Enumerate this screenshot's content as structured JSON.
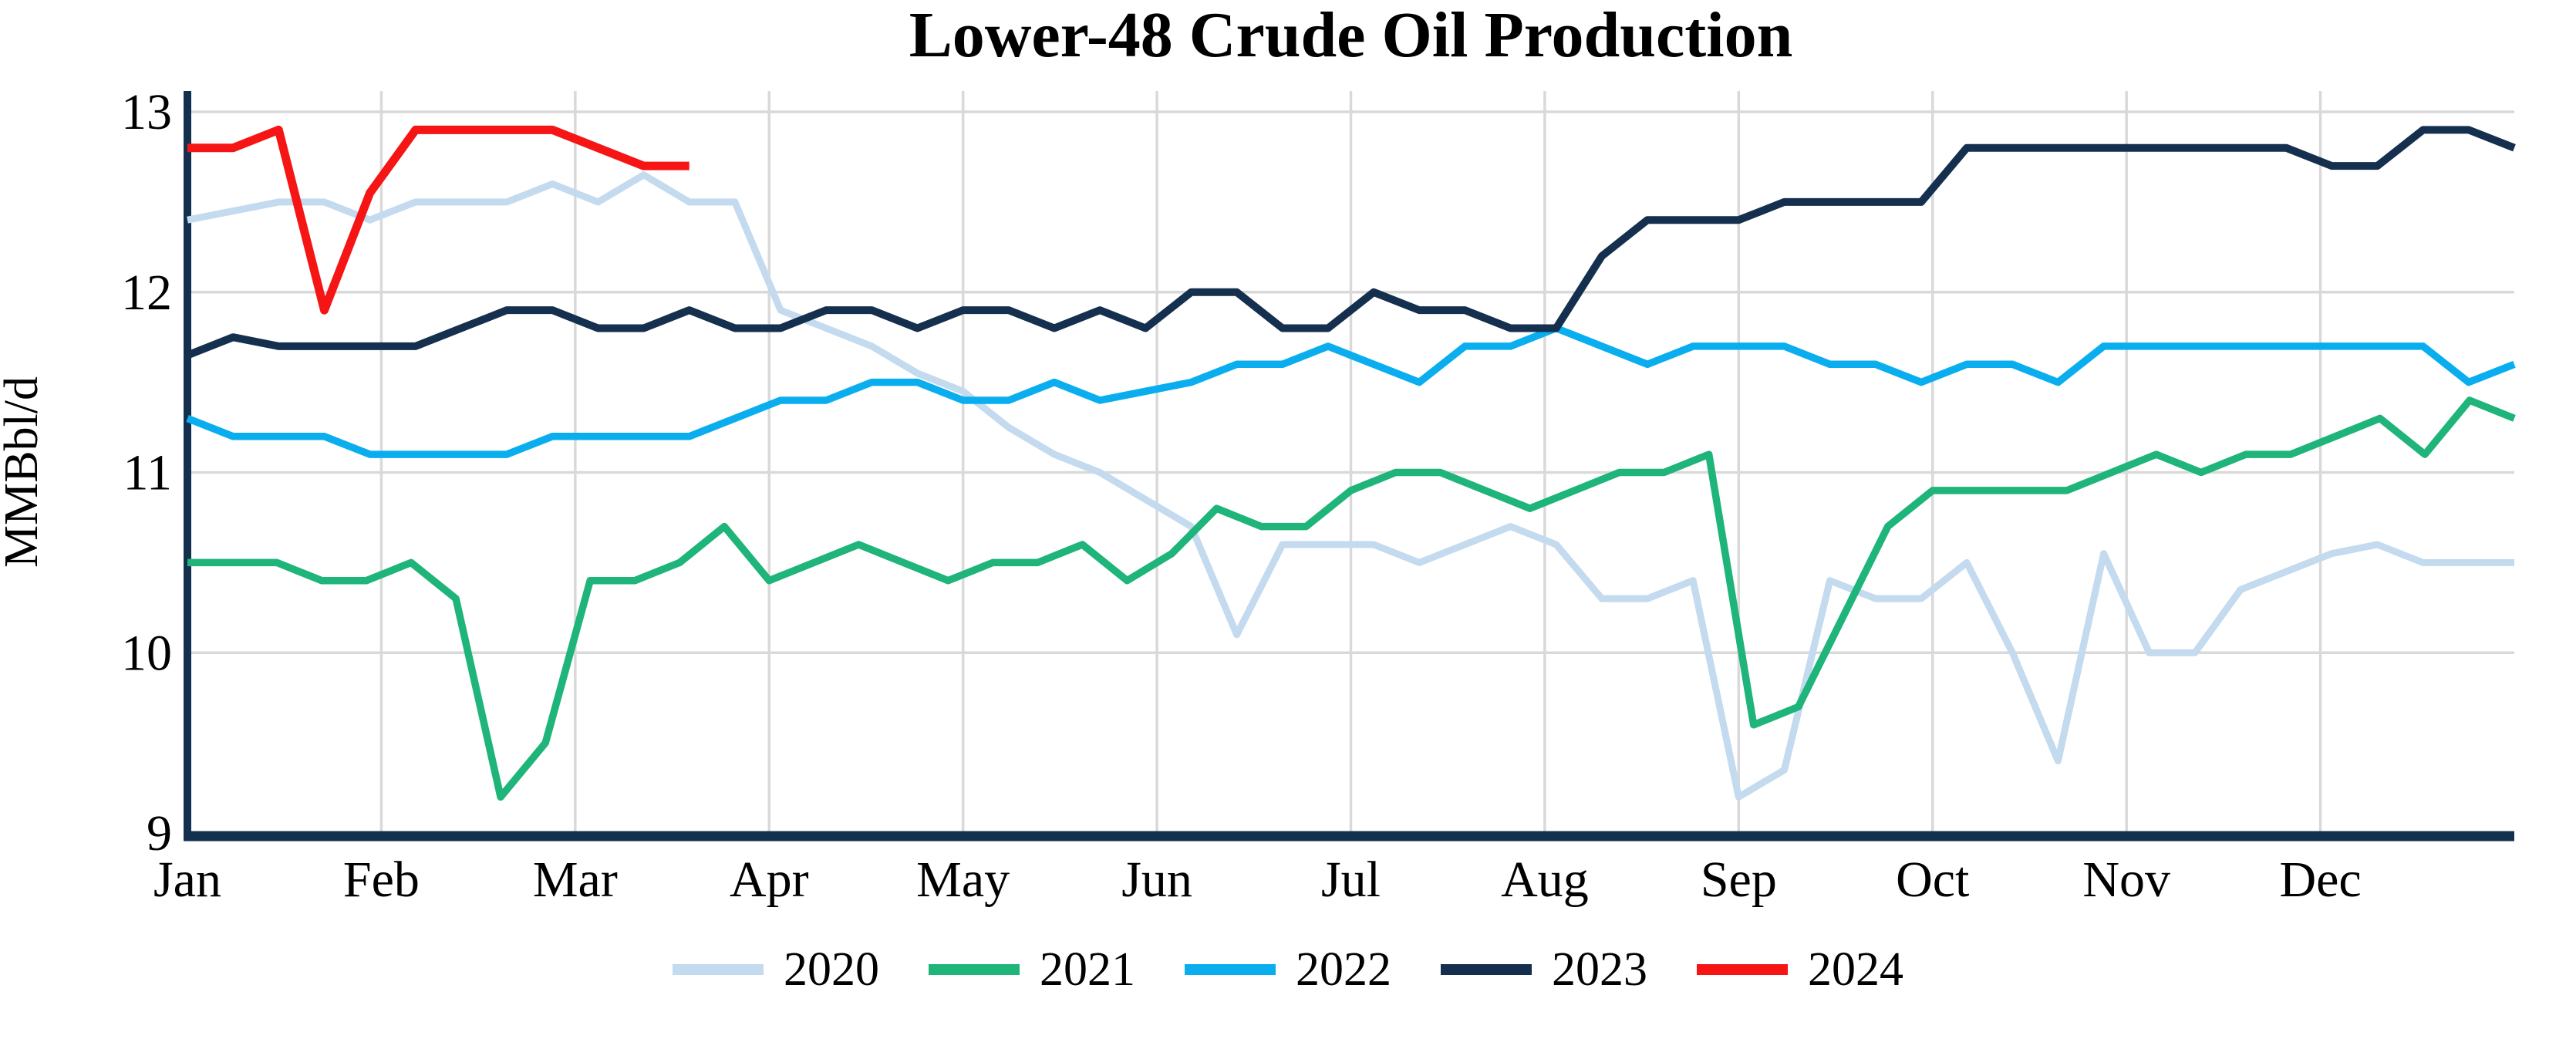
{
  "chart_data": {
    "type": "line",
    "title": "Lower-48 Crude Oil Production",
    "ylabel": "MMBbl/d",
    "xlabel": "",
    "x_tick_labels": [
      "Jan",
      "Feb",
      "Mar",
      "Apr",
      "May",
      "Jun",
      "Jul",
      "Aug",
      "Sep",
      "Oct",
      "Nov",
      "Dec"
    ],
    "y_ticks": [
      9,
      10,
      11,
      12,
      13
    ],
    "ylim": [
      9,
      13
    ],
    "x_unit": "weekly data, one calendar year",
    "grid": "vertical month lines and horizontal unit lines, light gray",
    "legend_position": "bottom-center",
    "frame": "navy left and bottom axis only",
    "axis_color": "#14304F",
    "gridline_color": "#D9D9D9",
    "series": [
      {
        "name": "2020",
        "color": "#C3DAEF",
        "width": 9,
        "values": [
          12.4,
          12.45,
          12.5,
          12.5,
          12.4,
          12.5,
          12.5,
          12.5,
          12.6,
          12.5,
          12.65,
          12.5,
          12.5,
          11.9,
          11.8,
          11.7,
          11.55,
          11.45,
          11.25,
          11.1,
          11.0,
          10.85,
          10.7,
          10.1,
          10.6,
          10.6,
          10.6,
          10.5,
          10.6,
          10.7,
          10.6,
          10.3,
          10.3,
          10.4,
          9.2,
          9.35,
          10.4,
          10.3,
          10.3,
          10.5,
          10.0,
          9.4,
          10.55,
          10.0,
          10.0,
          10.35,
          10.45,
          10.55,
          10.6,
          10.5,
          10.5,
          10.5
        ]
      },
      {
        "name": "2021",
        "color": "#1EB47A",
        "width": 9.5,
        "values": [
          10.5,
          10.5,
          10.5,
          10.4,
          10.4,
          10.5,
          10.3,
          9.2,
          9.5,
          10.4,
          10.4,
          10.5,
          10.7,
          10.4,
          10.5,
          10.6,
          10.5,
          10.4,
          10.5,
          10.5,
          10.6,
          10.4,
          10.55,
          10.8,
          10.7,
          10.7,
          10.9,
          11.0,
          11.0,
          10.9,
          10.8,
          10.9,
          11.0,
          11.0,
          11.1,
          9.6,
          9.7,
          10.2,
          10.7,
          10.9,
          10.9,
          10.9,
          10.9,
          11.0,
          11.1,
          11.0,
          11.1,
          11.1,
          11.2,
          11.3,
          11.1,
          11.4,
          11.3
        ]
      },
      {
        "name": "2022",
        "color": "#0AAEEF",
        "width": 9.5,
        "values": [
          11.3,
          11.2,
          11.2,
          11.2,
          11.1,
          11.1,
          11.1,
          11.1,
          11.2,
          11.2,
          11.2,
          11.2,
          11.3,
          11.4,
          11.4,
          11.5,
          11.5,
          11.4,
          11.4,
          11.5,
          11.4,
          11.45,
          11.5,
          11.6,
          11.6,
          11.7,
          11.6,
          11.5,
          11.7,
          11.7,
          11.8,
          11.7,
          11.6,
          11.7,
          11.7,
          11.7,
          11.6,
          11.6,
          11.5,
          11.6,
          11.6,
          11.5,
          11.7,
          11.7,
          11.7,
          11.7,
          11.7,
          11.7,
          11.7,
          11.7,
          11.5,
          11.6
        ]
      },
      {
        "name": "2023",
        "color": "#152F4E",
        "width": 10,
        "values": [
          11.65,
          11.75,
          11.7,
          11.7,
          11.7,
          11.7,
          11.8,
          11.9,
          11.9,
          11.8,
          11.8,
          11.9,
          11.8,
          11.8,
          11.9,
          11.9,
          11.8,
          11.9,
          11.9,
          11.8,
          11.9,
          11.8,
          12.0,
          12.0,
          11.8,
          11.8,
          12.0,
          11.9,
          11.9,
          11.8,
          11.8,
          12.2,
          12.4,
          12.4,
          12.4,
          12.5,
          12.5,
          12.5,
          12.5,
          12.8,
          12.8,
          12.8,
          12.8,
          12.8,
          12.8,
          12.8,
          12.8,
          12.7,
          12.7,
          12.9,
          12.9,
          12.8
        ]
      },
      {
        "name": "2024",
        "color": "#F61515",
        "width": 11,
        "partial_year": true,
        "values": [
          12.8,
          12.8,
          12.9,
          11.9,
          12.55,
          12.9,
          12.9,
          12.9,
          12.9,
          12.8,
          12.7,
          12.7
        ]
      }
    ]
  }
}
